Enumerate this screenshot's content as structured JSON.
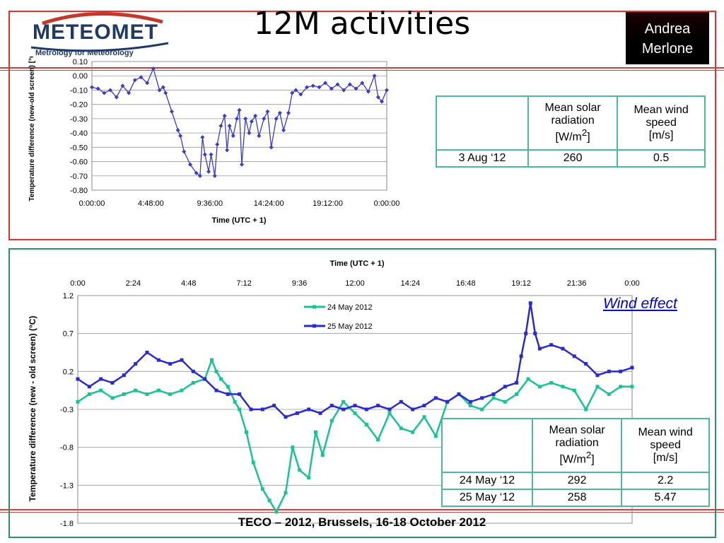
{
  "slide": {
    "title": "12M activities",
    "author_line1": "Andrea",
    "author_line2": "Merlone",
    "logo_word": "METEOMET",
    "logo_sub": "Metrology for Meteorology",
    "wind_effect": "Wind effect",
    "footer": "TECO – 2012, Brussels, 16-18 October 2012"
  },
  "table_top": {
    "headers": [
      "",
      "Mean solar radiation [W/m²]",
      "Mean wind speed [m/s]"
    ],
    "header_lines": [
      [
        "Mean solar",
        "radiation",
        "[W/m²]"
      ],
      [
        "Mean wind",
        "speed",
        "[m/s]"
      ]
    ],
    "rows": [
      [
        "3 Aug ‘12",
        "260",
        "0.5"
      ]
    ]
  },
  "table_bottom": {
    "header_lines": [
      [
        "Mean solar",
        "radiation",
        "[W/m²]"
      ],
      [
        "Mean wind",
        "speed",
        "[m/s]"
      ]
    ],
    "rows": [
      [
        "24 May ‘12",
        "292",
        "2.2"
      ],
      [
        "25 May ‘12",
        "258",
        "5.47"
      ]
    ]
  },
  "colors": {
    "top_series": "#3c3cc8",
    "green_series": "#18c494",
    "blue_series": "#2a2ad0",
    "top_border": "#e8302a",
    "bottom_border": "#2b8e6d"
  },
  "chart_data": [
    {
      "type": "line",
      "title": "",
      "xlabel": "Time  (UTC + 1)",
      "ylabel": "Temperature difference (new-old screen) [°C]",
      "x_ticks": [
        "0:00:00",
        "4:48:00",
        "9:36:00",
        "14:24:00",
        "19:12:00",
        "0:00:00"
      ],
      "y_ticks": [
        "0.10",
        "0.00",
        "-0.10",
        "-0.20",
        "-0.30",
        "-0.40",
        "-0.50",
        "-0.60",
        "-0.70",
        "-0.80"
      ],
      "xlim_hours": [
        0,
        24
      ],
      "ylim": [
        -0.8,
        0.1
      ],
      "grid": true,
      "series": [
        {
          "x_hours": [
            0,
            0.5,
            1,
            1.5,
            2,
            2.5,
            3,
            3.5,
            4,
            4.5,
            5,
            5.5,
            5.8,
            6,
            6.5,
            7,
            7.2,
            7.5,
            8,
            8.5,
            8.8,
            9,
            9.2,
            9.5,
            9.7,
            10,
            10.2,
            10.5,
            10.8,
            11,
            11.2,
            11.5,
            11.8,
            12,
            12.2,
            12.5,
            12.8,
            13,
            13.3,
            13.6,
            14,
            14.3,
            14.6,
            15,
            15.3,
            15.6,
            16,
            16.3,
            16.6,
            17,
            17.5,
            18,
            18.5,
            19,
            19.5,
            20,
            20.5,
            21,
            21.5,
            22,
            22.5,
            23,
            23.3,
            23.6,
            24
          ],
          "y": [
            -0.08,
            -0.09,
            -0.12,
            -0.1,
            -0.15,
            -0.07,
            -0.12,
            -0.03,
            -0.01,
            -0.05,
            0.05,
            -0.1,
            -0.08,
            -0.12,
            -0.25,
            -0.38,
            -0.42,
            -0.53,
            -0.62,
            -0.68,
            -0.7,
            -0.43,
            -0.55,
            -0.67,
            -0.55,
            -0.7,
            -0.48,
            -0.35,
            -0.28,
            -0.52,
            -0.35,
            -0.42,
            -0.3,
            -0.24,
            -0.62,
            -0.3,
            -0.4,
            -0.32,
            -0.28,
            -0.42,
            -0.3,
            -0.25,
            -0.5,
            -0.3,
            -0.26,
            -0.38,
            -0.26,
            -0.12,
            -0.1,
            -0.13,
            -0.08,
            -0.07,
            -0.08,
            -0.05,
            -0.09,
            -0.06,
            -0.1,
            -0.06,
            -0.09,
            -0.05,
            -0.11,
            0.0,
            -0.15,
            -0.18,
            -0.1
          ]
        }
      ]
    },
    {
      "type": "line",
      "title": "Time (UTC + 1)",
      "xlabel": "Time (UTC + 1)",
      "ylabel": "Temperature difference (new - old screen) (°C)",
      "x_ticks": [
        "0:00",
        "2:24",
        "4:48",
        "7:12",
        "9:36",
        "12:00",
        "14:24",
        "16:48",
        "19:12",
        "21:36",
        "0:00"
      ],
      "y_ticks": [
        "1.2",
        "0.7",
        "0.2",
        "-0.3",
        "-0.8",
        "-1.3",
        "-1.8"
      ],
      "xlim_hours": [
        0,
        24
      ],
      "ylim": [
        -1.8,
        1.2
      ],
      "grid": true,
      "legend": "top-center",
      "series": [
        {
          "name": "24 May 2012",
          "x_hours": [
            0,
            0.5,
            1,
            1.5,
            2,
            2.5,
            3,
            3.5,
            4,
            4.5,
            5,
            5.5,
            5.8,
            6,
            6.2,
            6.5,
            6.8,
            7,
            7.3,
            7.6,
            8,
            8.3,
            8.6,
            9,
            9.3,
            9.6,
            10,
            10.3,
            10.6,
            11,
            11.5,
            12,
            12.5,
            13,
            13.5,
            14,
            14.5,
            15,
            15.5,
            16,
            16.5,
            17,
            17.5,
            18,
            18.5,
            19,
            19.5,
            20,
            20.5,
            21,
            21.5,
            22,
            22.5,
            23,
            23.5,
            24
          ],
          "y": [
            -0.2,
            -0.1,
            -0.05,
            -0.15,
            -0.1,
            -0.05,
            -0.1,
            -0.05,
            -0.1,
            -0.05,
            0.05,
            0.1,
            0.35,
            0.2,
            0.1,
            0.0,
            -0.2,
            -0.3,
            -0.6,
            -1.0,
            -1.35,
            -1.5,
            -1.65,
            -1.4,
            -0.8,
            -1.1,
            -1.2,
            -0.6,
            -0.9,
            -0.45,
            -0.2,
            -0.35,
            -0.5,
            -0.7,
            -0.35,
            -0.55,
            -0.6,
            -0.4,
            -0.65,
            -0.2,
            -0.1,
            -0.25,
            -0.3,
            -0.15,
            -0.2,
            -0.1,
            0.1,
            0.0,
            0.05,
            0.0,
            -0.05,
            -0.3,
            0.0,
            -0.1,
            0.0,
            0.0
          ]
        },
        {
          "name": "25 May 2012",
          "x_hours": [
            0,
            0.5,
            1,
            1.5,
            2,
            2.5,
            3,
            3.5,
            4,
            4.5,
            5,
            5.5,
            6,
            6.5,
            7,
            7.5,
            8,
            8.5,
            9,
            9.5,
            10,
            10.5,
            11,
            11.5,
            12,
            12.5,
            13,
            13.5,
            14,
            14.5,
            15,
            15.5,
            16,
            16.5,
            17,
            17.5,
            18,
            18.5,
            19,
            19.2,
            19.4,
            19.6,
            19.8,
            20,
            20.5,
            21,
            21.5,
            22,
            22.5,
            23,
            23.5,
            24
          ],
          "y": [
            0.1,
            0.0,
            0.1,
            0.05,
            0.15,
            0.3,
            0.45,
            0.35,
            0.3,
            0.35,
            0.2,
            0.1,
            -0.05,
            -0.1,
            -0.1,
            -0.3,
            -0.3,
            -0.25,
            -0.4,
            -0.35,
            -0.3,
            -0.35,
            -0.25,
            -0.3,
            -0.25,
            -0.3,
            -0.25,
            -0.3,
            -0.2,
            -0.3,
            -0.25,
            -0.15,
            -0.2,
            -0.1,
            -0.2,
            -0.15,
            -0.1,
            0.0,
            0.05,
            0.4,
            0.7,
            1.1,
            0.7,
            0.5,
            0.55,
            0.5,
            0.4,
            0.3,
            0.15,
            0.2,
            0.2,
            0.25
          ]
        }
      ]
    }
  ]
}
